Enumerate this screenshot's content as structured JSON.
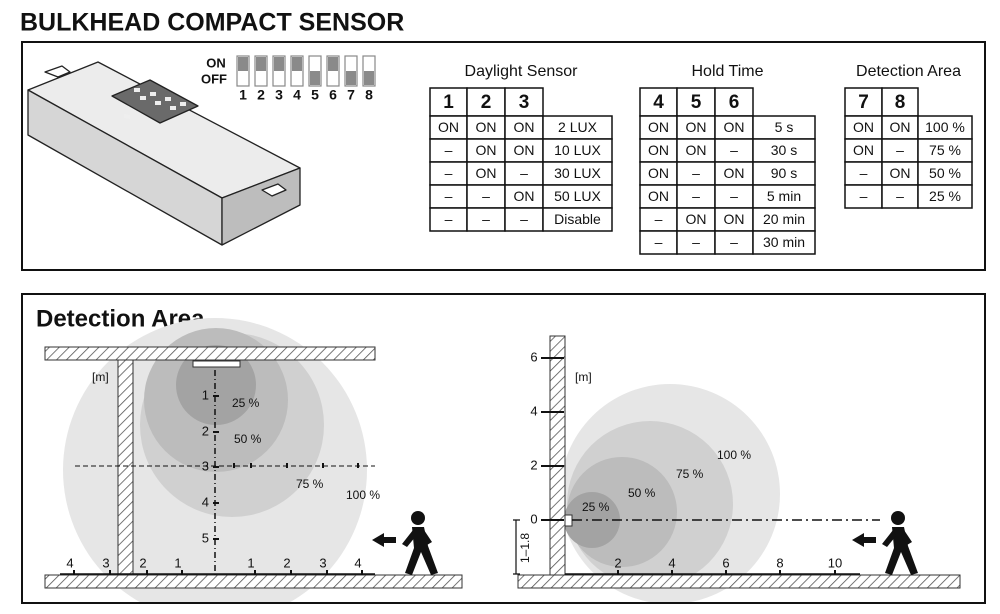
{
  "title": "BULKHEAD COMPACT SENSOR",
  "dip_switch": {
    "on": "ON",
    "off": "OFF",
    "numbers": [
      "1",
      "2",
      "3",
      "4",
      "5",
      "6",
      "7",
      "8"
    ]
  },
  "tables": [
    {
      "title": "Daylight Sensor",
      "header": [
        "1",
        "2",
        "3"
      ],
      "rows": [
        [
          "ON",
          "ON",
          "ON",
          "2 LUX"
        ],
        [
          "–",
          "ON",
          "ON",
          "10 LUX"
        ],
        [
          "–",
          "ON",
          "–",
          "30 LUX"
        ],
        [
          "–",
          "–",
          "ON",
          "50 LUX"
        ],
        [
          "–",
          "–",
          "–",
          "Disable"
        ]
      ]
    },
    {
      "title": "Hold Time",
      "header": [
        "4",
        "5",
        "6"
      ],
      "rows": [
        [
          "ON",
          "ON",
          "ON",
          "5 s"
        ],
        [
          "ON",
          "ON",
          "–",
          "30 s"
        ],
        [
          "ON",
          "–",
          "ON",
          "90 s"
        ],
        [
          "ON",
          "–",
          "–",
          "5 min"
        ],
        [
          "–",
          "ON",
          "ON",
          "20 min"
        ],
        [
          "–",
          "–",
          "–",
          "30 min"
        ]
      ]
    },
    {
      "title": "Detection Area",
      "header": [
        "7",
        "8"
      ],
      "rows": [
        [
          "ON",
          "ON",
          "100 %"
        ],
        [
          "ON",
          "–",
          "75 %"
        ],
        [
          "–",
          "ON",
          "50 %"
        ],
        [
          "–",
          "–",
          "25 %"
        ]
      ]
    }
  ],
  "detection_area": {
    "title": "Detection Area",
    "top_view": {
      "unit": "[m]",
      "vertical_labels": [
        "1",
        "2",
        "3",
        "4",
        "5"
      ],
      "horizontal_labels": [
        "4",
        "3",
        "2",
        "1",
        "1",
        "2",
        "3",
        "4"
      ],
      "zones": [
        "25 %",
        "50 %",
        "75 %",
        "100 %"
      ]
    },
    "side_view": {
      "unit": "[m]",
      "height_labels": [
        "6",
        "4",
        "2",
        "0"
      ],
      "distance_labels": [
        "2",
        "4",
        "6",
        "8",
        "10"
      ],
      "mounting_height": "1–1.8",
      "zones": [
        "25 %",
        "50 %",
        "75 %",
        "100 %"
      ]
    }
  }
}
